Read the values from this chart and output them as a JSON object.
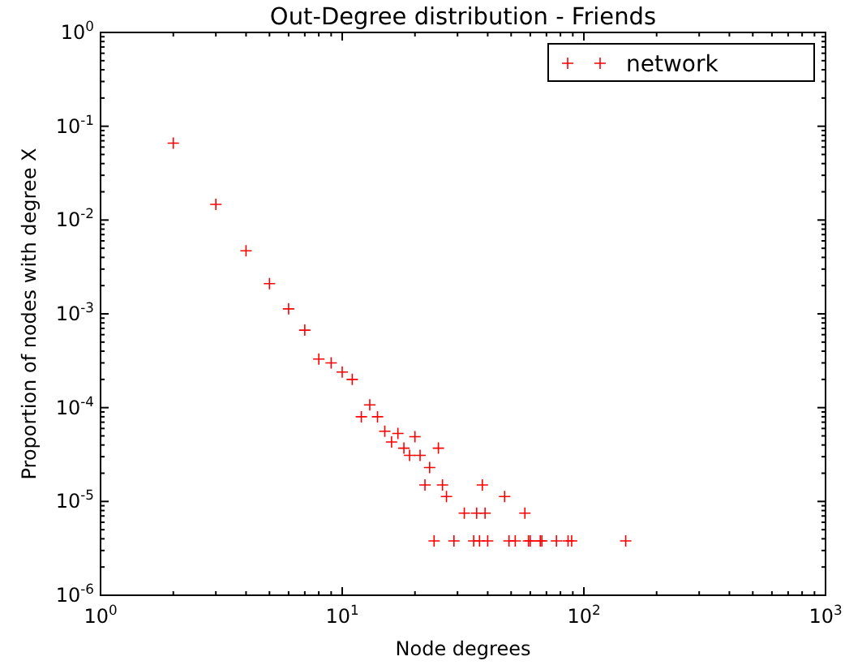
{
  "chart_data": {
    "type": "scatter",
    "title": "Out-Degree distribution - Friends",
    "xlabel": "Node degrees",
    "ylabel": "Proportion of nodes with degree X",
    "log": "xy",
    "marker": "cross",
    "legend": "top right",
    "grid": false,
    "xlim": [
      1,
      1000
    ],
    "ylim": [
      1e-06,
      1
    ],
    "xticks": [
      {
        "value": 1,
        "label": "10$^{0}$"
      },
      {
        "value": 10,
        "label": "10$^{1}$"
      },
      {
        "value": 100,
        "label": "10$^{2}$"
      },
      {
        "value": 1000,
        "label": "10$^{3}$"
      }
    ],
    "yticks": [
      {
        "value": 1e-06,
        "label": "10$^{-6}$"
      },
      {
        "value": 1e-05,
        "label": "10$^{-5}$"
      },
      {
        "value": 0.0001,
        "label": "10$^{-4}$"
      },
      {
        "value": 0.001,
        "label": "10$^{-3}$"
      },
      {
        "value": 0.01,
        "label": "10$^{-2}$"
      },
      {
        "value": 0.1,
        "label": "10$^{-1}$"
      },
      {
        "value": 1,
        "label": "10$^{0}$"
      }
    ],
    "series": [
      {
        "name": "network",
        "color": "#ff0000",
        "x": [
          2,
          3,
          4,
          5,
          6,
          7,
          8,
          9,
          10,
          11,
          12,
          13,
          14,
          15,
          16,
          17,
          18,
          19,
          20,
          21,
          22,
          23,
          24,
          25,
          26,
          27,
          29,
          32,
          35,
          36,
          37,
          38,
          39,
          40,
          47,
          49,
          52,
          57,
          59,
          60,
          66,
          67,
          77,
          86,
          89,
          149
        ],
        "values": [
          0.066,
          0.0147,
          0.0047,
          0.0021,
          0.00113,
          0.00067,
          0.00033,
          0.0003,
          0.00024,
          0.0002,
          8e-05,
          0.000107,
          8e-05,
          5.6e-05,
          4.3e-05,
          5.3e-05,
          3.7e-05,
          3.1e-05,
          4.9e-05,
          3.1e-05,
          1.5e-05,
          2.3e-05,
          3.8e-06,
          3.7e-05,
          1.5e-05,
          1.13e-05,
          3.8e-06,
          7.5e-06,
          3.8e-06,
          7.5e-06,
          3.8e-06,
          1.5e-05,
          7.5e-06,
          3.8e-06,
          1.13e-05,
          3.8e-06,
          3.8e-06,
          7.5e-06,
          3.8e-06,
          3.8e-06,
          3.8e-06,
          3.8e-06,
          3.8e-06,
          3.8e-06,
          3.8e-06,
          3.8e-06
        ]
      }
    ]
  }
}
